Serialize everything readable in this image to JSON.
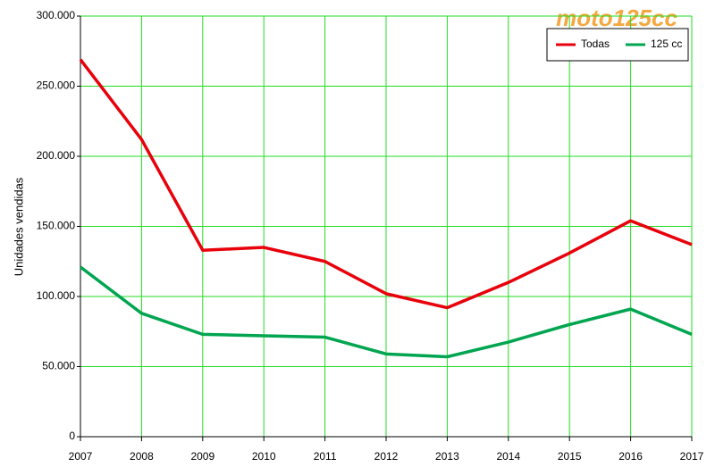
{
  "chart_data": {
    "type": "line",
    "y_label": "Unidades vendidas",
    "watermark": "moto125cc",
    "x": [
      2007,
      2008,
      2009,
      2010,
      2011,
      2012,
      2013,
      2014,
      2015,
      2016,
      2017
    ],
    "xlim": [
      2007,
      2017
    ],
    "xticks": [
      2007,
      2008,
      2009,
      2010,
      2011,
      2012,
      2013,
      2014,
      2015,
      2016,
      2017
    ],
    "ylim": [
      0,
      300000
    ],
    "yticks": [
      0,
      {
        "value": 50000,
        "label": "50.000"
      },
      {
        "value": 100000,
        "label": "100.000"
      },
      {
        "value": 150000,
        "label": "150.000"
      },
      {
        "value": 200000,
        "label": "200.000"
      },
      {
        "value": 250000,
        "label": "250.000"
      },
      {
        "value": 300000,
        "label": "300.000"
      }
    ],
    "grid": true,
    "legend": "top-right",
    "series": [
      {
        "name": "Todas",
        "color": "#e8000b",
        "values": [
          269000,
          212000,
          133000,
          135000,
          125000,
          102000,
          92000,
          110000,
          131000,
          154000,
          137000
        ]
      },
      {
        "name": "125 cc",
        "color": "#00a550",
        "values": [
          121000,
          88000,
          73000,
          72000,
          71000,
          59000,
          57000,
          67500,
          80000,
          91000,
          73000
        ]
      }
    ]
  }
}
